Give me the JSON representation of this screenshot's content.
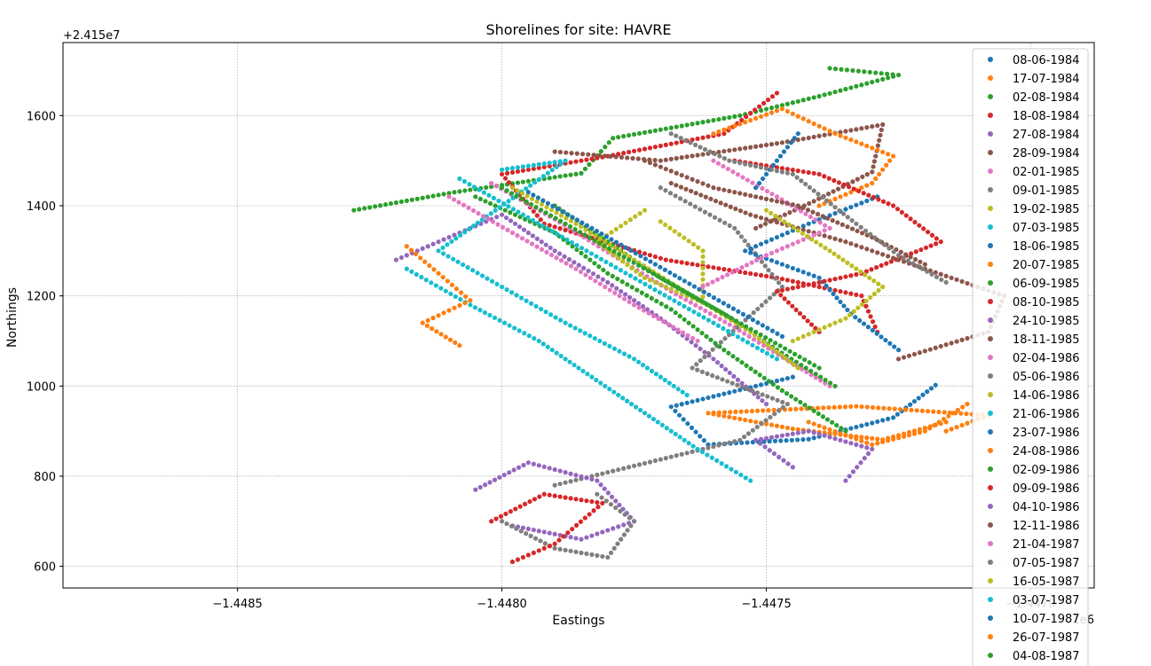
{
  "chart_data": {
    "type": "scatter",
    "title": "Shorelines for site: HAVRE",
    "xlabel": "Eastings",
    "ylabel": "Northings",
    "x_offset_label": "1e6",
    "y_offset_label": "+2.415e7",
    "xlim": [
      -1.44883,
      -1.44688
    ],
    "ylim": [
      552,
      1762
    ],
    "x_ticks": [
      -1.4485,
      -1.448,
      -1.4475,
      -1.447
    ],
    "x_tick_labels": [
      "−1.4485",
      "−1.4480",
      "−1.4475",
      "−1.4470"
    ],
    "y_ticks": [
      600,
      800,
      1000,
      1200,
      1400,
      1600
    ],
    "y_tick_labels": [
      "600",
      "800",
      "1000",
      "1200",
      "1400",
      "1600"
    ],
    "grid": true,
    "legend_position": "top-right",
    "series": [
      {
        "name": "08-06-1984",
        "color": "#1f77b4",
        "points": [
          [
            -1.44718,
            1002
          ],
          [
            -1.44726,
            930
          ],
          [
            -1.44742,
            882
          ],
          [
            -1.44761,
            870
          ],
          [
            -1.44768,
            954
          ],
          [
            -1.44745,
            1020
          ]
        ]
      },
      {
        "name": "17-07-1984",
        "color": "#ff7f0e",
        "points": [
          [
            -1.44716,
            920
          ],
          [
            -1.44728,
            881
          ],
          [
            -1.44745,
            905
          ],
          [
            -1.44761,
            940
          ],
          [
            -1.44733,
            955
          ],
          [
            -1.44708,
            935
          ],
          [
            -1.44716,
            900
          ]
        ]
      },
      {
        "name": "02-08-1984",
        "color": "#2ca02c",
        "points": [
          [
            -1.44828,
            1390
          ],
          [
            -1.44809,
            1430
          ],
          [
            -1.44785,
            1472
          ],
          [
            -1.44779,
            1550
          ],
          [
            -1.44755,
            1600
          ],
          [
            -1.4474,
            1643
          ],
          [
            -1.44725,
            1690
          ],
          [
            -1.44738,
            1705
          ]
        ]
      },
      {
        "name": "18-08-1984",
        "color": "#d62728",
        "points": [
          [
            -1.44748,
            1650
          ],
          [
            -1.44758,
            1560
          ],
          [
            -1.4478,
            1510
          ],
          [
            -1.448,
            1470
          ],
          [
            -1.44792,
            1360
          ],
          [
            -1.44769,
            1280
          ],
          [
            -1.44748,
            1240
          ],
          [
            -1.44732,
            1200
          ],
          [
            -1.44729,
            1120
          ]
        ]
      },
      {
        "name": "27-08-1984",
        "color": "#9467bd",
        "points": [
          [
            -1.4482,
            1280
          ],
          [
            -1.4481,
            1330
          ],
          [
            -1.448,
            1380
          ],
          [
            -1.4479,
            1300
          ],
          [
            -1.4478,
            1230
          ],
          [
            -1.4477,
            1150
          ],
          [
            -1.4476,
            1060
          ],
          [
            -1.4475,
            960
          ]
        ]
      },
      {
        "name": "28-09-1984",
        "color": "#8c564b",
        "points": [
          [
            -1.4479,
            1520
          ],
          [
            -1.4477,
            1500
          ],
          [
            -1.44747,
            1540
          ],
          [
            -1.44728,
            1580
          ],
          [
            -1.4473,
            1475
          ],
          [
            -1.44741,
            1410
          ],
          [
            -1.44752,
            1350
          ]
        ]
      },
      {
        "name": "02-01-1985",
        "color": "#e377c2",
        "points": [
          [
            -1.44802,
            1450
          ],
          [
            -1.4479,
            1370
          ],
          [
            -1.44779,
            1290
          ],
          [
            -1.44768,
            1210
          ],
          [
            -1.44756,
            1130
          ],
          [
            -1.44745,
            1050
          ],
          [
            -1.44738,
            1000
          ]
        ]
      },
      {
        "name": "09-01-1985",
        "color": "#7f7f7f",
        "points": [
          [
            -1.4477,
            1440
          ],
          [
            -1.44756,
            1350
          ],
          [
            -1.44747,
            1220
          ],
          [
            -1.44764,
            1040
          ],
          [
            -1.44746,
            960
          ],
          [
            -1.44755,
            880
          ],
          [
            -1.4479,
            780
          ]
        ]
      },
      {
        "name": "19-02-1985",
        "color": "#bcbd22",
        "points": [
          [
            -1.44773,
            1390
          ],
          [
            -1.44782,
            1320
          ],
          [
            -1.44773,
            1240
          ],
          [
            -1.44762,
            1185
          ],
          [
            -1.44762,
            1300
          ],
          [
            -1.4477,
            1365
          ]
        ]
      },
      {
        "name": "07-03-1985",
        "color": "#17becf",
        "points": [
          [
            -1.44818,
            1260
          ],
          [
            -1.44806,
            1180
          ],
          [
            -1.44793,
            1100
          ],
          [
            -1.44783,
            1020
          ],
          [
            -1.44773,
            940
          ],
          [
            -1.44763,
            860
          ],
          [
            -1.44753,
            790
          ]
        ]
      },
      {
        "name": "18-06-1985",
        "color": "#1f77b4",
        "points": [
          [
            -1.44729,
            1420
          ],
          [
            -1.44742,
            1360
          ],
          [
            -1.44754,
            1300
          ],
          [
            -1.4474,
            1240
          ],
          [
            -1.44734,
            1160
          ],
          [
            -1.44725,
            1080
          ]
        ]
      },
      {
        "name": "20-07-1985",
        "color": "#ff7f0e",
        "points": [
          [
            -1.4476,
            1560
          ],
          [
            -1.44747,
            1615
          ],
          [
            -1.44737,
            1560
          ],
          [
            -1.44726,
            1510
          ],
          [
            -1.4473,
            1450
          ],
          [
            -1.4474,
            1400
          ]
        ]
      },
      {
        "name": "06-09-1985",
        "color": "#2ca02c",
        "points": [
          [
            -1.44805,
            1420
          ],
          [
            -1.4479,
            1340
          ],
          [
            -1.4478,
            1250
          ],
          [
            -1.44768,
            1170
          ],
          [
            -1.44758,
            1080
          ],
          [
            -1.44747,
            990
          ],
          [
            -1.44735,
            900
          ]
        ]
      },
      {
        "name": "08-10-1985",
        "color": "#d62728",
        "points": [
          [
            -1.44756,
            1500
          ],
          [
            -1.4474,
            1470
          ],
          [
            -1.44726,
            1400
          ],
          [
            -1.44717,
            1320
          ],
          [
            -1.44732,
            1250
          ],
          [
            -1.44748,
            1210
          ],
          [
            -1.4474,
            1120
          ]
        ]
      },
      {
        "name": "24-10-1985",
        "color": "#9467bd",
        "points": [
          [
            -1.44805,
            770
          ],
          [
            -1.44795,
            830
          ],
          [
            -1.44782,
            790
          ],
          [
            -1.44775,
            700
          ],
          [
            -1.44785,
            660
          ],
          [
            -1.44798,
            690
          ]
        ]
      },
      {
        "name": "18-11-1985",
        "color": "#8c564b",
        "points": [
          [
            -1.44768,
            1450
          ],
          [
            -1.44753,
            1380
          ],
          [
            -1.44735,
            1320
          ],
          [
            -1.4472,
            1260
          ],
          [
            -1.44705,
            1200
          ],
          [
            -1.44708,
            1120
          ],
          [
            -1.44725,
            1060
          ]
        ]
      },
      {
        "name": "02-04-1986",
        "color": "#e377c2",
        "points": [
          [
            -1.4476,
            1500
          ],
          [
            -1.44748,
            1420
          ],
          [
            -1.44738,
            1350
          ],
          [
            -1.4475,
            1290
          ],
          [
            -1.44762,
            1220
          ]
        ]
      },
      {
        "name": "05-06-1986",
        "color": "#7f7f7f",
        "points": [
          [
            -1.448,
            700
          ],
          [
            -1.4479,
            640
          ],
          [
            -1.4478,
            620
          ],
          [
            -1.44775,
            700
          ],
          [
            -1.44782,
            760
          ]
        ]
      },
      {
        "name": "14-06-1986",
        "color": "#bcbd22",
        "points": [
          [
            -1.4475,
            1390
          ],
          [
            -1.44738,
            1300
          ],
          [
            -1.44728,
            1220
          ],
          [
            -1.44735,
            1150
          ],
          [
            -1.44745,
            1100
          ]
        ]
      },
      {
        "name": "21-06-1986",
        "color": "#17becf",
        "points": [
          [
            -1.448,
            1480
          ],
          [
            -1.44788,
            1500
          ],
          [
            -1.44812,
            1300
          ],
          [
            -1.448,
            1220
          ],
          [
            -1.44788,
            1140
          ],
          [
            -1.44775,
            1060
          ],
          [
            -1.44765,
            980
          ]
        ]
      },
      {
        "name": "23-07-1986",
        "color": "#1f77b4",
        "points": [
          [
            -1.44744,
            1560
          ],
          [
            -1.44748,
            1500
          ],
          [
            -1.44752,
            1440
          ]
        ]
      },
      {
        "name": "24-08-1986",
        "color": "#ff7f0e",
        "points": [
          [
            -1.44712,
            960
          ],
          [
            -1.4472,
            900
          ],
          [
            -1.4473,
            870
          ],
          [
            -1.44742,
            920
          ]
        ]
      },
      {
        "name": "02-09-1986",
        "color": "#2ca02c",
        "points": [
          [
            -1.4479,
            1400
          ],
          [
            -1.4478,
            1320
          ],
          [
            -1.4477,
            1240
          ],
          [
            -1.44758,
            1160
          ],
          [
            -1.44748,
            1080
          ],
          [
            -1.44737,
            1000
          ]
        ]
      },
      {
        "name": "09-09-1986",
        "color": "#d62728",
        "points": [
          [
            -1.44802,
            700
          ],
          [
            -1.44792,
            760
          ],
          [
            -1.44781,
            740
          ],
          [
            -1.4479,
            650
          ],
          [
            -1.44798,
            610
          ]
        ]
      },
      {
        "name": "04-10-1986",
        "color": "#9467bd",
        "points": [
          [
            -1.44745,
            820
          ],
          [
            -1.44752,
            880
          ],
          [
            -1.44742,
            900
          ],
          [
            -1.4473,
            860
          ],
          [
            -1.44735,
            790
          ]
        ]
      },
      {
        "name": "12-11-1986",
        "color": "#8c564b",
        "points": [
          [
            -1.44773,
            1500
          ],
          [
            -1.4476,
            1440
          ],
          [
            -1.44744,
            1400
          ],
          [
            -1.4473,
            1330
          ],
          [
            -1.4472,
            1270
          ]
        ]
      },
      {
        "name": "21-04-1987",
        "color": "#e377c2",
        "points": [
          [
            -1.4481,
            1420
          ],
          [
            -1.44798,
            1340
          ],
          [
            -1.44786,
            1260
          ],
          [
            -1.44775,
            1180
          ],
          [
            -1.44763,
            1100
          ]
        ]
      },
      {
        "name": "07-05-1987",
        "color": "#7f7f7f",
        "points": [
          [
            -1.44768,
            1560
          ],
          [
            -1.44757,
            1500
          ],
          [
            -1.44745,
            1470
          ],
          [
            -1.44733,
            1360
          ],
          [
            -1.44725,
            1290
          ],
          [
            -1.44716,
            1230
          ]
        ]
      },
      {
        "name": "16-05-1987",
        "color": "#bcbd22",
        "points": [
          [
            -1.44798,
            1440
          ],
          [
            -1.44786,
            1360
          ],
          [
            -1.44775,
            1280
          ],
          [
            -1.44764,
            1200
          ],
          [
            -1.44753,
            1120
          ],
          [
            -1.44744,
            1040
          ]
        ]
      },
      {
        "name": "03-07-1987",
        "color": "#17becf",
        "points": [
          [
            -1.44808,
            1460
          ],
          [
            -1.44796,
            1380
          ],
          [
            -1.44784,
            1300
          ],
          [
            -1.44772,
            1220
          ],
          [
            -1.4476,
            1140
          ],
          [
            -1.44748,
            1060
          ]
        ]
      },
      {
        "name": "10-07-1987",
        "color": "#1f77b4",
        "points": [
          [
            -1.44795,
            1430
          ],
          [
            -1.44783,
            1350
          ],
          [
            -1.44771,
            1270
          ],
          [
            -1.44759,
            1190
          ],
          [
            -1.44747,
            1110
          ]
        ]
      },
      {
        "name": "26-07-1987",
        "color": "#ff7f0e",
        "points": [
          [
            -1.44818,
            1310
          ],
          [
            -1.44812,
            1250
          ],
          [
            -1.44806,
            1190
          ],
          [
            -1.44815,
            1140
          ],
          [
            -1.44808,
            1090
          ]
        ]
      },
      {
        "name": "04-08-1987",
        "color": "#2ca02c",
        "points": [
          [
            -1.448,
            1440
          ],
          [
            -1.44788,
            1360
          ],
          [
            -1.44776,
            1280
          ],
          [
            -1.44764,
            1200
          ],
          [
            -1.44752,
            1120
          ],
          [
            -1.4474,
            1040
          ]
        ]
      }
    ]
  }
}
